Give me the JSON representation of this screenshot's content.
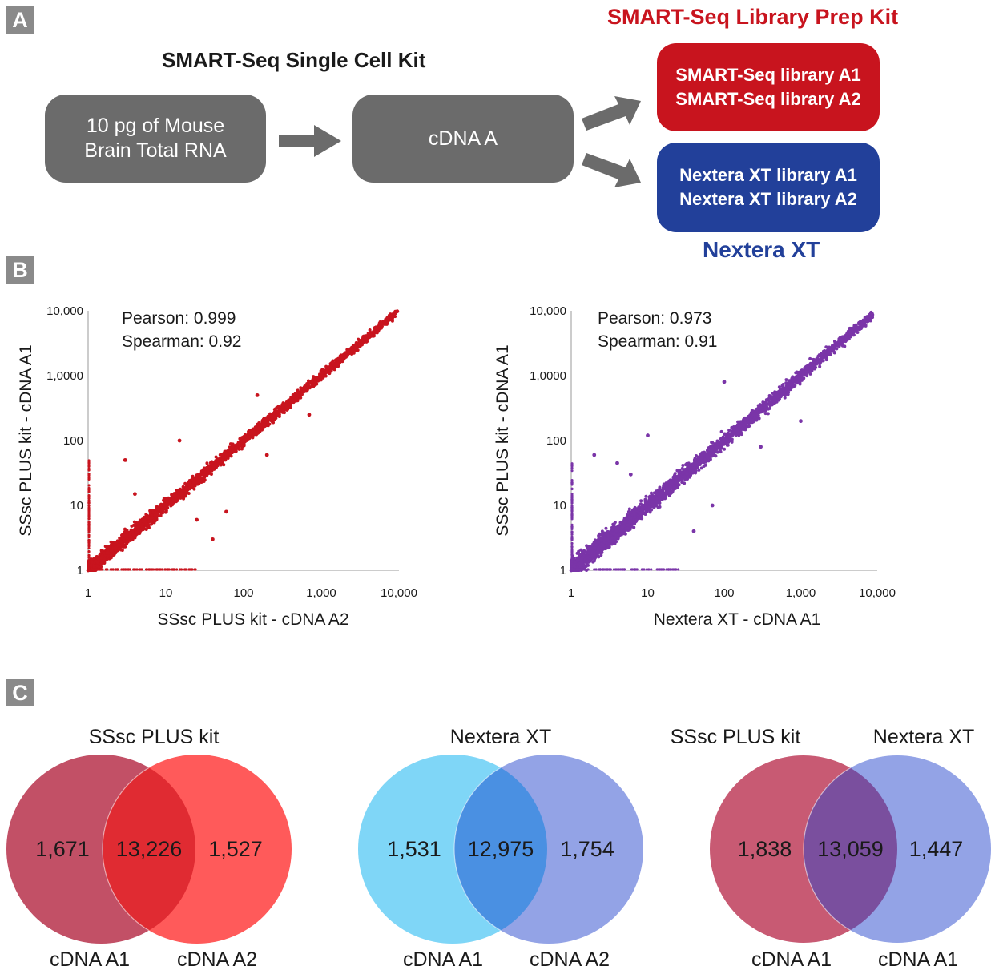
{
  "panels": {
    "a": "A",
    "b": "B",
    "c": "C"
  },
  "flow": {
    "kit_title": "SMART-Seq Single Cell Kit",
    "input_line1": "10 pg of Mouse",
    "input_line2": "Brain Total RNA",
    "cdna": "cDNA A",
    "smart_kit_title": "SMART-Seq Library Prep Kit",
    "smart_lib1": "SMART-Seq library A1",
    "smart_lib2": "SMART-Seq library A2",
    "nextera_lib1": "Nextera XT library A1",
    "nextera_lib2": "Nextera XT library A2",
    "nextera_title": "Nextera XT",
    "colors": {
      "box": "#6b6b6b",
      "smart": "#c8141e",
      "nextera": "#22409a",
      "arrow": "#6b6b6b"
    }
  },
  "chart_data": [
    {
      "type": "scatter",
      "title": "",
      "xlabel": "SSsc PLUS kit - cDNA A2",
      "ylabel": "SSsc PLUS kit - cDNA A1",
      "x_scale": "log",
      "y_scale": "log",
      "xlim": [
        1,
        10000
      ],
      "ylim": [
        1,
        10000
      ],
      "x_ticks": [
        "1",
        "10",
        "100",
        "1,000",
        "10,000"
      ],
      "y_ticks": [
        "1",
        "10",
        "100",
        "1,0000",
        "10,000"
      ],
      "annotations": [
        "Pearson: 0.999",
        "Spearman: 0.92"
      ],
      "color": "#c8141e",
      "points": [
        [
          1,
          1
        ],
        [
          2,
          2
        ],
        [
          3,
          3.4
        ],
        [
          5,
          4.6
        ],
        [
          8,
          8.8
        ],
        [
          12,
          11
        ],
        [
          20,
          22
        ],
        [
          35,
          33
        ],
        [
          60,
          62
        ],
        [
          100,
          98
        ],
        [
          180,
          185
        ],
        [
          300,
          290
        ],
        [
          500,
          520
        ],
        [
          900,
          880
        ],
        [
          1500,
          1550
        ],
        [
          2500,
          2450
        ],
        [
          4000,
          4100
        ],
        [
          6000,
          6200
        ],
        [
          9500,
          9800
        ],
        [
          40,
          3
        ],
        [
          3,
          50
        ],
        [
          60,
          8
        ],
        [
          15,
          100
        ],
        [
          200,
          60
        ],
        [
          4,
          15
        ],
        [
          25,
          6
        ],
        [
          150,
          500
        ],
        [
          700,
          250
        ]
      ]
    },
    {
      "type": "scatter",
      "title": "",
      "xlabel": "Nextera XT - cDNA A1",
      "ylabel": "SSsc PLUS kit - cDNA A1",
      "x_scale": "log",
      "y_scale": "log",
      "xlim": [
        1,
        10000
      ],
      "ylim": [
        1,
        10000
      ],
      "x_ticks": [
        "1",
        "10",
        "100",
        "1,000",
        "10,000"
      ],
      "y_ticks": [
        "1",
        "10",
        "100",
        "1,0000",
        "10,000"
      ],
      "annotations": [
        "Pearson: 0.973",
        "Spearman: 0.91"
      ],
      "color": "#7a35a8",
      "points": [
        [
          1,
          1
        ],
        [
          2,
          2.2
        ],
        [
          3,
          3
        ],
        [
          5,
          5.5
        ],
        [
          8,
          7.5
        ],
        [
          12,
          13
        ],
        [
          20,
          19
        ],
        [
          35,
          37
        ],
        [
          60,
          58
        ],
        [
          100,
          105
        ],
        [
          180,
          170
        ],
        [
          300,
          320
        ],
        [
          500,
          480
        ],
        [
          900,
          950
        ],
        [
          1500,
          1450
        ],
        [
          2500,
          2600
        ],
        [
          4000,
          3900
        ],
        [
          5800,
          6500
        ],
        [
          8500,
          8000
        ],
        [
          40,
          4
        ],
        [
          4,
          45
        ],
        [
          70,
          10
        ],
        [
          10,
          120
        ],
        [
          300,
          80
        ],
        [
          6,
          30
        ],
        [
          2,
          60
        ],
        [
          100,
          800
        ],
        [
          1000,
          200
        ]
      ]
    },
    {
      "type": "venn",
      "title": "SSsc PLUS kit",
      "sets": [
        "cDNA A1",
        "cDNA A2"
      ],
      "values": {
        "only_a": "1,671",
        "both": "13,226",
        "only_b": "1,527"
      },
      "colors": {
        "a": "#c25066",
        "b": "#ff5a5a",
        "overlap": "#e02b32"
      }
    },
    {
      "type": "venn",
      "title": "Nextera XT",
      "sets": [
        "cDNA A1",
        "cDNA A2"
      ],
      "values": {
        "only_a": "1,531",
        "both": "12,975",
        "only_b": "1,754"
      },
      "colors": {
        "a": "#7fd6f7",
        "b": "#93a3e6",
        "overlap": "#4a90e2"
      }
    },
    {
      "type": "venn",
      "titles": [
        "SSsc PLUS kit",
        "Nextera XT"
      ],
      "sets": [
        "cDNA A1",
        "cDNA A1"
      ],
      "values": {
        "only_a": "1,838",
        "both": "13,059",
        "only_b": "1,447"
      },
      "colors": {
        "a": "#c85a73",
        "b": "#93a3e6",
        "overlap": "#7a4f9e"
      }
    }
  ]
}
